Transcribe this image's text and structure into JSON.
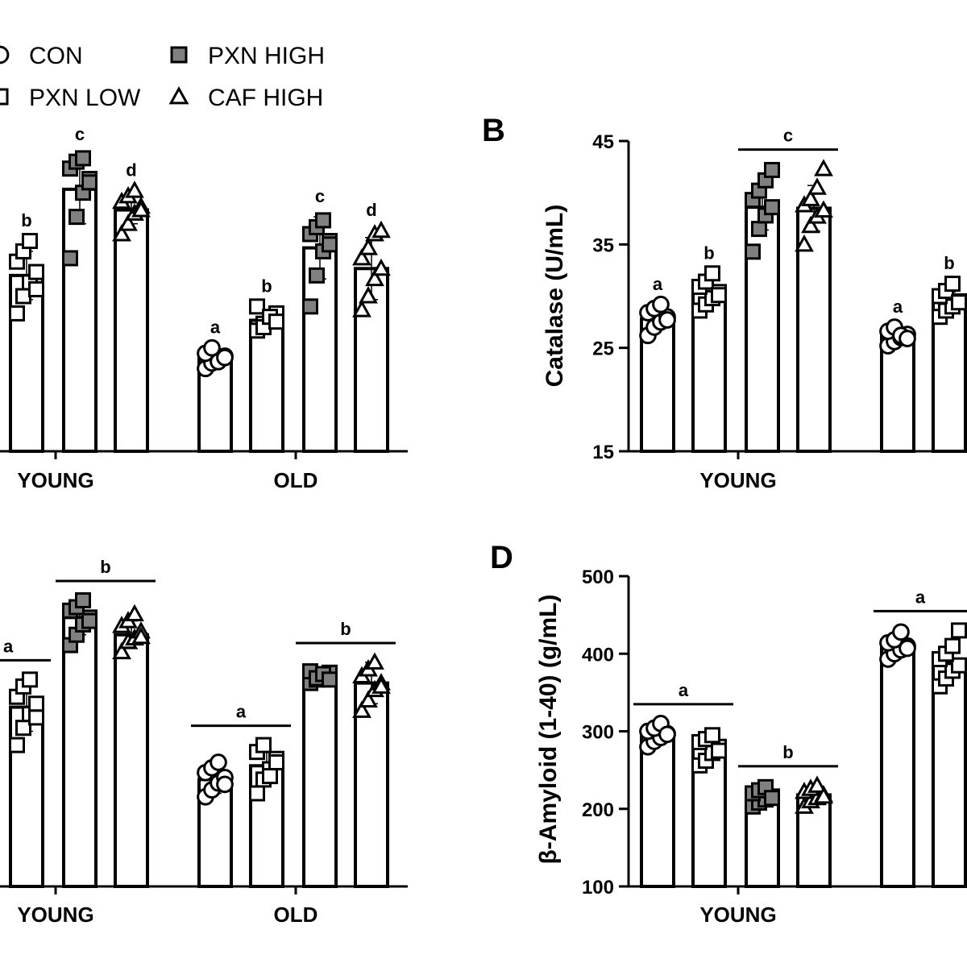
{
  "colors": {
    "ink": "#000000",
    "gray_fill": "#808080",
    "open_fill": "#ffffff"
  },
  "legend": [
    {
      "label": "CON",
      "marker": "circle"
    },
    {
      "label": "PXN LOW",
      "marker": "square-open"
    },
    {
      "label": "PXN HIGH",
      "marker": "square-gray"
    },
    {
      "label": "CAF HIGH",
      "marker": "triangle"
    }
  ],
  "chart_data": [
    {
      "panel_label": "",
      "type": "bar",
      "categories": [
        "YOUNG",
        "OLD"
      ],
      "ylabel": "",
      "ylim": [
        0,
        4.5
      ],
      "yticks": [],
      "series": [
        {
          "name": "CON",
          "values": [
            null,
            1.35
          ],
          "err": [
            null,
            0.12
          ],
          "points": [
            [
              null
            ],
            [
              1.2,
              1.28,
              1.32,
              1.38,
              1.42,
              1.5,
              1.3,
              1.36
            ]
          ],
          "letters": [
            null,
            "a"
          ]
        },
        {
          "name": "PXN LOW",
          "values": [
            2.55,
            1.9
          ],
          "err": [
            0.35,
            0.12
          ],
          "points": [
            [
              2.0,
              2.25,
              2.45,
              2.6,
              2.75,
              2.9,
              3.05,
              2.35
            ],
            [
              1.75,
              1.85,
              1.9,
              2.0,
              2.1,
              1.8,
              1.95,
              1.88
            ]
          ],
          "letters": [
            "b",
            "b"
          ]
        },
        {
          "name": "PXN HIGH",
          "values": [
            3.8,
            2.95
          ],
          "err": [
            0.5,
            0.45
          ],
          "points": [
            [
              2.8,
              3.4,
              3.75,
              3.95,
              4.1,
              4.2,
              4.25,
              3.9
            ],
            [
              2.1,
              2.55,
              2.9,
              3.05,
              3.15,
              3.25,
              3.35,
              3.0
            ]
          ],
          "letters": [
            "c",
            "c"
          ]
        },
        {
          "name": "CAF HIGH",
          "values": [
            3.5,
            2.65
          ],
          "err": [
            0.2,
            0.45
          ],
          "points": [
            [
              3.15,
              3.3,
              3.45,
              3.55,
              3.62,
              3.7,
              3.78,
              3.5
            ],
            [
              2.05,
              2.25,
              2.5,
              2.65,
              2.8,
              2.95,
              3.15,
              3.2
            ]
          ],
          "letters": [
            "d",
            "d"
          ]
        }
      ],
      "group_bars": []
    },
    {
      "panel_label": "B",
      "type": "bar",
      "categories": [
        "YOUNG",
        "OLD"
      ],
      "ylabel": "Catalase  (U/mL)",
      "ylim": [
        15,
        45
      ],
      "yticks": [
        15,
        25,
        35,
        45
      ],
      "series": [
        {
          "name": "CON",
          "values": [
            27.8,
            26.2
          ],
          "err": [
            1.0,
            0.8
          ],
          "points": [
            [
              26.2,
              27.0,
              27.5,
              28.0,
              28.4,
              28.8,
              29.2,
              27.7
            ],
            [
              25.2,
              25.6,
              26.0,
              26.3,
              26.6,
              27.0,
              26.2,
              25.9
            ]
          ],
          "letters": [
            "a",
            "a"
          ]
        },
        {
          "name": "PXN LOW",
          "values": [
            30.3,
            29.4
          ],
          "err": [
            1.2,
            1.0
          ],
          "points": [
            [
              28.6,
              29.2,
              29.8,
              30.4,
              30.9,
              31.4,
              32.2,
              30.1
            ],
            [
              28.0,
              28.6,
              29.0,
              29.5,
              30.0,
              30.5,
              31.2,
              29.4
            ]
          ],
          "letters": [
            "b",
            "b"
          ]
        },
        {
          "name": "PXN HIGH",
          "values": [
            38.6,
            null
          ],
          "err": [
            2.2,
            null
          ],
          "points": [
            [
              34.3,
              36.5,
              37.8,
              38.6,
              39.3,
              40.2,
              41.2,
              42.2
            ],
            [
              null
            ]
          ],
          "letters": [
            null,
            null
          ]
        },
        {
          "name": "CAF HIGH",
          "values": [
            38.5,
            null
          ],
          "err": [
            2.2,
            null
          ],
          "points": [
            [
              35.0,
              36.8,
              37.7,
              38.3,
              38.8,
              39.4,
              40.5,
              42.3
            ],
            [
              null
            ]
          ],
          "letters": [
            null,
            null
          ]
        }
      ],
      "group_bars": [
        {
          "category": 0,
          "series": [
            2,
            3
          ],
          "letter": "c"
        }
      ]
    },
    {
      "panel_label": "",
      "type": "bar",
      "categories": [
        "YOUNG",
        "OLD"
      ],
      "ylabel": "",
      "ylim": [
        0,
        4.5
      ],
      "yticks": [],
      "series": [
        {
          "name": "CON",
          "values": [
            null,
            1.55
          ],
          "err": [
            null,
            0.2
          ],
          "points": [
            [
              null
            ],
            [
              1.3,
              1.4,
              1.5,
              1.58,
              1.65,
              1.72,
              1.8,
              1.48
            ]
          ],
          "letters": [
            null,
            null
          ]
        },
        {
          "name": "PXN LOW",
          "values": [
            2.6,
            1.75
          ],
          "err": [
            0.35,
            0.2
          ],
          "points": [
            [
              2.05,
              2.3,
              2.5,
              2.65,
              2.75,
              2.9,
              3.0,
              2.45
            ],
            [
              1.35,
              1.55,
              1.7,
              1.85,
              1.95,
              2.05,
              1.6,
              1.8
            ]
          ],
          "letters": [
            null,
            null
          ]
        },
        {
          "name": "PXN HIGH",
          "values": [
            3.9,
            3.05
          ],
          "err": [
            0.25,
            0.08
          ],
          "points": [
            [
              3.5,
              3.65,
              3.8,
              3.9,
              4.0,
              4.05,
              4.15,
              3.85
            ],
            [
              2.95,
              3.0,
              3.05,
              3.1,
              3.12,
              3.02,
              3.08,
              3.0
            ]
          ],
          "letters": [
            null,
            null
          ]
        },
        {
          "name": "CAF HIGH",
          "values": [
            3.65,
            2.95
          ],
          "err": [
            0.2,
            0.3
          ],
          "points": [
            [
              3.4,
              3.55,
              3.6,
              3.7,
              3.78,
              3.85,
              3.95,
              3.62
            ],
            [
              2.55,
              2.7,
              2.85,
              2.95,
              3.05,
              3.15,
              3.25,
              2.9
            ]
          ],
          "letters": [
            null,
            null
          ]
        }
      ],
      "group_bars": [
        {
          "category": 0,
          "series": [
            0,
            1
          ],
          "letter": "a",
          "clip_left": true
        },
        {
          "category": 0,
          "series": [
            2,
            3
          ],
          "letter": "b"
        },
        {
          "category": 1,
          "series": [
            0,
            1
          ],
          "letter": "a"
        },
        {
          "category": 1,
          "series": [
            2,
            3
          ],
          "letter": "b"
        }
      ]
    },
    {
      "panel_label": "D",
      "type": "bar",
      "categories": [
        "YOUNG",
        "OLD"
      ],
      "ylabel": "β-Amyloid (1-40) (g/mL)",
      "ylim": [
        100,
        500
      ],
      "yticks": [
        100,
        200,
        300,
        400,
        500
      ],
      "series": [
        {
          "name": "CON",
          "values": [
            295,
            410
          ],
          "err": [
            12,
            12
          ],
          "points": [
            [
              280,
              287,
              292,
              297,
              300,
              304,
              310,
              296
            ],
            [
              393,
              400,
              405,
              410,
              414,
              418,
              428,
              407
            ]
          ],
          "letters": [
            null,
            null
          ]
        },
        {
          "name": "PXN LOW",
          "values": [
            278,
            388
          ],
          "err": [
            15,
            18
          ],
          "points": [
            [
              256,
              262,
              272,
              280,
              286,
              290,
              295,
              275
            ],
            [
              358,
              368,
              378,
              385,
              393,
              400,
              410,
              430
            ]
          ],
          "letters": [
            null,
            null
          ]
        },
        {
          "name": "PXN HIGH",
          "values": [
            215,
            null
          ],
          "err": [
            8,
            null
          ],
          "points": [
            [
              203,
              208,
              212,
              216,
              220,
              224,
              228,
              214
            ],
            [
              null
            ]
          ],
          "letters": [
            null,
            null
          ]
        },
        {
          "name": "CAF HIGH",
          "values": [
            218,
            null
          ],
          "err": [
            8,
            null
          ],
          "points": [
            [
              203,
              210,
              214,
              218,
              222,
              226,
              230,
              216
            ],
            [
              null
            ]
          ],
          "letters": [
            null,
            null
          ]
        }
      ],
      "group_bars": [
        {
          "category": 0,
          "series": [
            0,
            1
          ],
          "letter": "a"
        },
        {
          "category": 0,
          "series": [
            2,
            3
          ],
          "letter": "b"
        },
        {
          "category": 1,
          "series": [
            0,
            1
          ],
          "letter": "a"
        }
      ]
    }
  ]
}
